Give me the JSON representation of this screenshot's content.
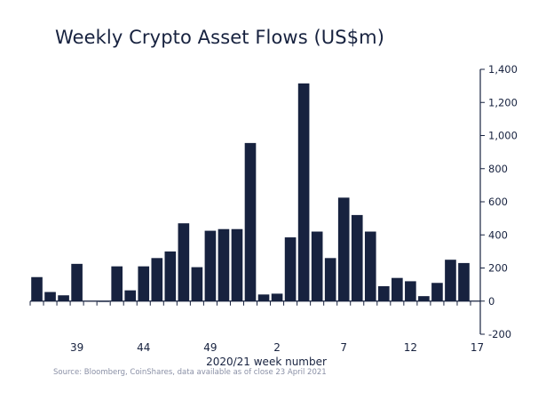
{
  "chart_data": {
    "type": "bar",
    "title": "Weekly Crypto Asset Flows (US$m)",
    "xlabel": "2020/21 week number",
    "ylabel": "",
    "source": "Source: Bloomberg, CoinShares, data available as of close 23 April 2021",
    "ylim": [
      -200,
      1400
    ],
    "yticks": [
      -200,
      0,
      200,
      400,
      600,
      800,
      1000,
      1200,
      1400
    ],
    "ytick_labels": [
      "-200",
      "0",
      "200",
      "400",
      "600",
      "800",
      "1,000",
      "1,200",
      "1,400"
    ],
    "xtick_labels": [
      {
        "label": "39",
        "index": 3
      },
      {
        "label": "44",
        "index": 8
      },
      {
        "label": "49",
        "index": 13
      },
      {
        "label": "2",
        "index": 18
      },
      {
        "label": "7",
        "index": 23
      },
      {
        "label": "12",
        "index": 28
      },
      {
        "label": "17",
        "index": 33
      }
    ],
    "bar_color": "#17223f",
    "values": [
      145,
      55,
      35,
      225,
      0,
      -5,
      210,
      65,
      210,
      260,
      300,
      470,
      205,
      425,
      435,
      435,
      955,
      40,
      45,
      385,
      1315,
      420,
      260,
      625,
      520,
      420,
      90,
      140,
      120,
      30,
      110,
      250,
      230
    ]
  }
}
